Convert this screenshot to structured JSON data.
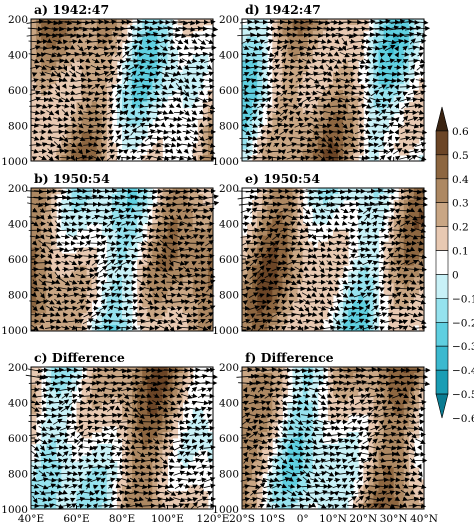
{
  "chart_data": [
    {
      "type": "heatmap",
      "title": "a) 1942:47",
      "x_ticks": [
        "40°E",
        "60°E",
        "80°E",
        "100°E",
        "120°E"
      ],
      "xlim": [
        40,
        120
      ],
      "y_ticks": [
        "200",
        "400",
        "600",
        "800",
        "1000"
      ],
      "ylim": [
        1000,
        200
      ],
      "y_reversed": true,
      "overlay": "vectors"
    },
    {
      "type": "heatmap",
      "title": "b) 1950:54",
      "x_ticks": [
        "40°E",
        "60°E",
        "80°E",
        "100°E",
        "120°E"
      ],
      "xlim": [
        40,
        120
      ],
      "y_ticks": [
        "200",
        "400",
        "600",
        "800",
        "1000"
      ],
      "ylim": [
        1000,
        200
      ],
      "y_reversed": true,
      "overlay": "vectors"
    },
    {
      "type": "heatmap",
      "title": "c) Difference",
      "x_ticks": [
        "40°E",
        "60°E",
        "80°E",
        "100°E",
        "120°E"
      ],
      "xlim": [
        40,
        120
      ],
      "y_ticks": [
        "200",
        "400",
        "600",
        "800",
        "1000"
      ],
      "ylim": [
        1000,
        200
      ],
      "y_reversed": true,
      "overlay": "vectors"
    },
    {
      "type": "heatmap",
      "title": "d) 1942:47",
      "x_ticks": [
        "20°S",
        "10°S",
        "0°",
        "10°N",
        "20°N",
        "30°N",
        "40°N"
      ],
      "xlim": [
        -20,
        40
      ],
      "ylim": [
        1000,
        200
      ],
      "y_reversed": true,
      "overlay": "vectors"
    },
    {
      "type": "heatmap",
      "title": "e) 1950:54",
      "x_ticks": [
        "20°S",
        "10°S",
        "0°",
        "10°N",
        "20°N",
        "30°N",
        "40°N"
      ],
      "xlim": [
        -20,
        40
      ],
      "ylim": [
        1000,
        200
      ],
      "y_reversed": true,
      "overlay": "vectors"
    },
    {
      "type": "heatmap",
      "title": "f) Difference",
      "x_ticks": [
        "20°S",
        "10°S",
        "0°",
        "10°N",
        "20°N",
        "30°N",
        "40°N"
      ],
      "xlim": [
        -20,
        40
      ],
      "ylim": [
        1000,
        200
      ],
      "y_reversed": true,
      "overlay": "vectors"
    }
  ],
  "colorbar": {
    "levels": [
      "0.6",
      "0.5",
      "0.4",
      "0.3",
      "0.2",
      "0.1",
      "0",
      "−0.1",
      "−0.2",
      "−0.3",
      "−0.4",
      "−0.5",
      "−0.6"
    ],
    "colors": [
      "#3b2412",
      "#6b4526",
      "#8d6640",
      "#ad8862",
      "#c9a684",
      "#e8c9b2",
      "#ffffff",
      "#c8f1f7",
      "#95e2ee",
      "#5fcfe0",
      "#3bb9cf",
      "#1a9db4",
      "#0b7c92"
    ]
  }
}
